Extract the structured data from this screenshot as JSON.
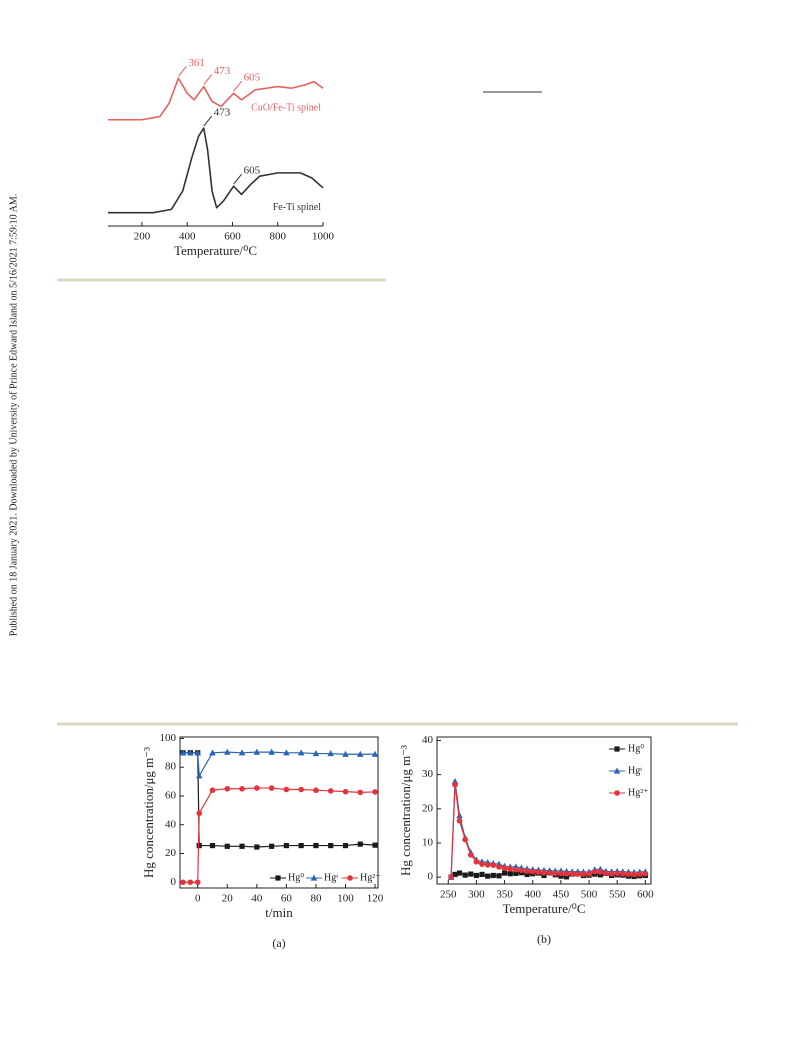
{
  "side_note": "Published on 18 January 2021. Downloaded by University of Prince Edward Island on 5/16/2021 7:59:10 AM.",
  "chart_data": [
    {
      "type": "line",
      "xlabel": "Temperature/⁰C",
      "xlim": [
        50,
        1000
      ],
      "xticks": [
        200,
        400,
        600,
        800,
        1000
      ],
      "ylim": [
        0,
        100
      ],
      "series": [
        {
          "name": "CuO/Fe-Ti spinel",
          "color": "#e8615f",
          "peaks": [
            361,
            473,
            605
          ],
          "x": [
            50,
            200,
            280,
            320,
            361,
            400,
            430,
            473,
            510,
            550,
            605,
            640,
            700,
            800,
            860,
            920,
            960,
            1000
          ],
          "values": [
            64,
            64,
            66,
            74,
            89,
            80,
            76,
            84,
            75,
            72,
            80,
            76,
            82,
            84,
            83,
            85,
            87,
            83
          ]
        },
        {
          "name": "Fe-Ti spinel",
          "color": "#333333",
          "peaks": [
            473,
            605
          ],
          "x": [
            50,
            250,
            330,
            380,
            420,
            450,
            473,
            490,
            510,
            530,
            560,
            605,
            640,
            680,
            720,
            800,
            900,
            950,
            1000
          ],
          "values": [
            8,
            8,
            10,
            21,
            41,
            54,
            59,
            46,
            21,
            11,
            15,
            24,
            19,
            25,
            30,
            32,
            32,
            29,
            23
          ]
        }
      ]
    },
    {
      "type": "line",
      "caption": "(a)",
      "xlabel": "t/min",
      "ylabel": "Hg concentration/μg m⁻³",
      "xlim": [
        -12,
        122
      ],
      "xticks": [
        0,
        20,
        40,
        60,
        80,
        100,
        120
      ],
      "ylim": [
        -4,
        101
      ],
      "yticks": [
        0,
        20,
        40,
        60,
        80,
        100
      ],
      "legend": "lower right",
      "x": [
        -10,
        -5,
        0,
        1,
        10,
        20,
        30,
        40,
        50,
        60,
        70,
        80,
        90,
        100,
        110,
        120
      ],
      "series": [
        {
          "name": "Hg⁰",
          "color": "#1a1a1a",
          "marker": "square",
          "values": [
            90,
            90,
            90,
            25.5,
            25.5,
            25,
            25,
            24.5,
            25,
            25.5,
            25.5,
            25.5,
            25.5,
            25.5,
            26.5,
            25.8
          ]
        },
        {
          "name": "Hgᵗ",
          "color": "#2a64b4",
          "marker": "triangle",
          "values": [
            90,
            90,
            90,
            74,
            90,
            90.5,
            90,
            90.5,
            90.5,
            90,
            90,
            89.5,
            89.5,
            89,
            89,
            89
          ]
        },
        {
          "name": "Hg²⁺",
          "color": "#e5333b",
          "marker": "circle",
          "values": [
            0,
            0,
            0,
            48,
            64,
            65,
            65,
            65.5,
            65.5,
            64.5,
            64.5,
            64,
            63.5,
            63,
            62.5,
            62.8
          ]
        }
      ]
    },
    {
      "type": "line",
      "caption": "(b)",
      "xlabel": "Temperature/⁰C",
      "ylabel": "Hg concentration/μg m⁻³",
      "xlim": [
        230,
        610
      ],
      "xticks": [
        250,
        300,
        350,
        400,
        450,
        500,
        550,
        600
      ],
      "ylim": [
        -2,
        41
      ],
      "yticks": [
        0,
        10,
        20,
        30,
        40
      ],
      "legend": "upper right",
      "x": [
        255,
        262,
        270,
        280,
        290,
        300,
        310,
        320,
        330,
        340,
        350,
        360,
        370,
        380,
        390,
        400,
        410,
        420,
        430,
        440,
        450,
        460,
        470,
        480,
        490,
        500,
        510,
        520,
        530,
        540,
        550,
        560,
        570,
        580,
        590,
        600
      ],
      "series": [
        {
          "name": "Hg⁰",
          "color": "#1a1a1a",
          "marker": "square",
          "values": [
            0,
            0.8,
            1.2,
            0.6,
            0.9,
            0.5,
            0.8,
            0.3,
            0.5,
            0.4,
            1.2,
            1,
            1.1,
            1.3,
            0.8,
            1,
            1.2,
            0.5,
            1.3,
            0.7,
            0.3,
            0.1,
            0.9,
            1,
            0.5,
            0.6,
            0.9,
            0.7,
            1.1,
            0.5,
            0.7,
            0.6,
            0.3,
            0.2,
            0.4,
            0.5
          ]
        },
        {
          "name": "Hgᵗ",
          "color": "#2a64b4",
          "marker": "triangle",
          "values": [
            0,
            28,
            18,
            11.5,
            7.2,
            5,
            4.5,
            4.3,
            4,
            3.8,
            3.2,
            3,
            3,
            2.7,
            2.4,
            2.2,
            2.1,
            2,
            1.9,
            1.8,
            1.8,
            1.7,
            1.6,
            1.6,
            1.5,
            1.5,
            2.2,
            2.3,
            1.7,
            1.6,
            1.7,
            1.6,
            1.5,
            1.4,
            1.5,
            1.6
          ]
        },
        {
          "name": "Hg²⁺",
          "color": "#e5333b",
          "marker": "circle",
          "values": [
            0,
            27,
            16.5,
            11,
            6.5,
            4.5,
            3.8,
            3.6,
            3.5,
            3,
            2.6,
            2.4,
            2.2,
            2,
            1.8,
            1.6,
            1.5,
            1.3,
            1.2,
            1.1,
            1.1,
            1,
            1,
            0.9,
            0.9,
            1,
            1.6,
            1.5,
            1.1,
            1,
            1.1,
            1,
            0.9,
            0.8,
            0.9,
            1
          ]
        }
      ]
    }
  ]
}
